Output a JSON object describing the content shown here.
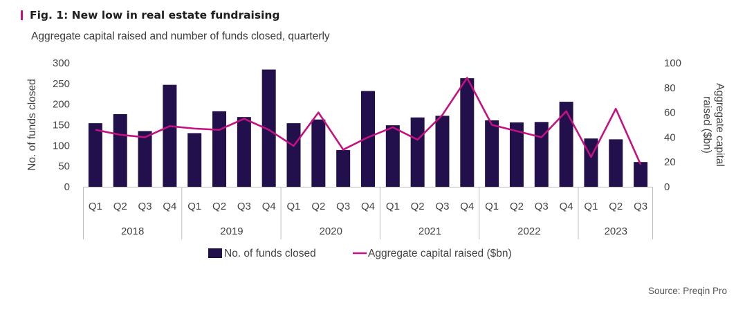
{
  "header": {
    "title": "Fig. 1: New low in real estate fundraising",
    "subtitle": "Aggregate capital raised and number of funds closed, quarterly"
  },
  "source": "Source: Preqin Pro",
  "colors": {
    "accent": "#c4117e",
    "bar": "#22104d",
    "line": "#c4117e",
    "axis": "#bfbfbf"
  },
  "chart_data": {
    "type": "bar",
    "title": "Fig. 1: New low in real estate fundraising",
    "subtitle": "Aggregate capital raised and number of funds closed, quarterly",
    "ylabel": "No. of funds closed",
    "y2label_lines": [
      "Aggregate capital",
      "raised ($bn)"
    ],
    "ylim": [
      0,
      300
    ],
    "y_ticks": [
      0,
      50,
      100,
      150,
      200,
      250,
      300
    ],
    "y2lim": [
      0,
      100
    ],
    "y2_ticks": [
      0,
      20,
      40,
      60,
      80,
      100
    ],
    "grid": false,
    "legend_position": "bottom",
    "categories": [
      "Q1",
      "Q2",
      "Q3",
      "Q4",
      "Q1",
      "Q2",
      "Q3",
      "Q4",
      "Q1",
      "Q2",
      "Q3",
      "Q4",
      "Q1",
      "Q2",
      "Q3",
      "Q4",
      "Q1",
      "Q2",
      "Q3",
      "Q4",
      "Q1",
      "Q2",
      "Q3"
    ],
    "years": [
      {
        "label": "2018",
        "count": 4
      },
      {
        "label": "2019",
        "count": 4
      },
      {
        "label": "2020",
        "count": 4
      },
      {
        "label": "2021",
        "count": 4
      },
      {
        "label": "2022",
        "count": 4
      },
      {
        "label": "2023",
        "count": 3
      }
    ],
    "series": [
      {
        "name": "No. of funds closed",
        "type": "bar",
        "axis": "left",
        "values": [
          154,
          176,
          135,
          247,
          130,
          183,
          169,
          284,
          154,
          163,
          89,
          232,
          149,
          168,
          172,
          263,
          161,
          156,
          157,
          206,
          117,
          115,
          60
        ]
      },
      {
        "name": "Aggregate capital raised ($bn)",
        "type": "line",
        "axis": "right",
        "values": [
          46,
          42,
          40,
          49,
          47,
          46,
          55,
          46,
          33,
          60,
          30,
          40,
          48,
          38,
          58,
          88,
          50,
          45,
          40,
          61,
          24,
          63,
          18
        ]
      }
    ]
  }
}
